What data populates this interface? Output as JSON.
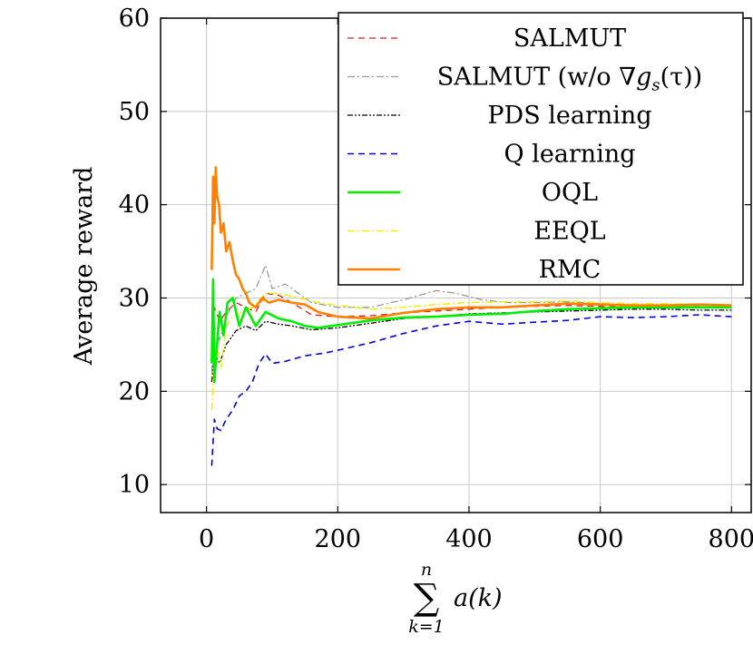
{
  "chart_data": {
    "type": "line",
    "xlabel": "a(k)",
    "xlabel_sum": {
      "symbol": "∑",
      "upper": "n",
      "lower": "k=1"
    },
    "ylabel": "Average reward",
    "xlim": [
      -70,
      830
    ],
    "ylim": [
      7,
      60
    ],
    "xticks": [
      0,
      200,
      400,
      600,
      800
    ],
    "yticks": [
      10,
      20,
      30,
      40,
      50,
      60
    ],
    "grid": true,
    "legend_position": "top-right",
    "series": [
      {
        "name": "SALMUT",
        "color": "#e41a1c",
        "dash": "dashed",
        "width": 1.3,
        "x": [
          8,
          12,
          20,
          30,
          45,
          60,
          75,
          90,
          110,
          130,
          160,
          200,
          250,
          300,
          350,
          400,
          450,
          500,
          550,
          600,
          650,
          700,
          750,
          800
        ],
        "y": [
          24,
          29,
          27.5,
          28.5,
          29.5,
          29,
          28.5,
          30.5,
          30.3,
          29.5,
          28.2,
          28,
          28.1,
          28.4,
          28.6,
          28.8,
          29,
          29.1,
          29.2,
          29.1,
          29,
          29.1,
          29,
          29.1
        ]
      },
      {
        "name": "SALMUT (w/o ∇g_s(τ))",
        "legend_parts": [
          "SALMUT (w/o ∇",
          "g",
          "s",
          "(τ))"
        ],
        "color": "#999999",
        "dash": "dashdot",
        "width": 1.3,
        "x": [
          8,
          12,
          20,
          30,
          45,
          60,
          75,
          90,
          100,
          120,
          140,
          160,
          200,
          250,
          300,
          350,
          380,
          420,
          460,
          500,
          550,
          600,
          650,
          700,
          750,
          800
        ],
        "y": [
          22,
          27,
          25.5,
          28,
          30,
          30.5,
          31,
          33.5,
          31,
          31.5,
          30.5,
          29.5,
          29,
          29,
          29.8,
          30.8,
          30.5,
          29.8,
          29.5,
          29.5,
          29.6,
          29.4,
          29.2,
          29.2,
          29.1,
          29
        ]
      },
      {
        "name": "PDS learning",
        "color": "#000000",
        "dash": "dashdotdot",
        "width": 1.3,
        "x": [
          8,
          12,
          20,
          30,
          45,
          60,
          75,
          90,
          110,
          130,
          160,
          200,
          250,
          300,
          350,
          400,
          450,
          500,
          550,
          600,
          650,
          700,
          750,
          800
        ],
        "y": [
          21,
          24,
          23,
          25,
          26.5,
          27,
          26.5,
          27.5,
          27.2,
          27,
          26.6,
          26.8,
          27.3,
          27.8,
          28,
          28.3,
          28.4,
          28.5,
          28.6,
          28.7,
          28.8,
          28.8,
          28.7,
          28.7
        ]
      },
      {
        "name": "Q learning",
        "color": "#0000dd",
        "dash": "dashed",
        "width": 1.6,
        "x": [
          8,
          12,
          16,
          22,
          30,
          40,
          50,
          60,
          70,
          80,
          90,
          100,
          120,
          150,
          180,
          200,
          250,
          300,
          350,
          400,
          450,
          500,
          550,
          600,
          650,
          700,
          750,
          800
        ],
        "y": [
          12,
          17,
          16,
          15.8,
          17,
          18,
          19.5,
          20,
          21,
          23,
          24,
          23,
          23.2,
          23.8,
          24.1,
          24.4,
          25.2,
          26.2,
          27,
          27.5,
          27.2,
          27.4,
          27.6,
          28,
          27.9,
          28,
          28.2,
          28
        ]
      },
      {
        "name": "OQL",
        "color": "#00ee00",
        "dash": "solid",
        "width": 2.6,
        "x": [
          8,
          10,
          12,
          16,
          20,
          26,
          32,
          40,
          50,
          60,
          75,
          90,
          110,
          130,
          150,
          170,
          200,
          250,
          300,
          350,
          400,
          450,
          500,
          550,
          600,
          650,
          700,
          750,
          800
        ],
        "y": [
          23,
          32,
          21,
          25,
          28.5,
          26,
          29.5,
          30,
          27,
          29,
          27,
          28.5,
          27.8,
          27.5,
          27,
          26.8,
          27.1,
          27.6,
          27.9,
          28,
          28.2,
          28.3,
          28.6,
          28.8,
          28.9,
          29,
          29,
          29,
          29
        ]
      },
      {
        "name": "EEQL",
        "color": "#f0f000",
        "dash": "dashdot",
        "width": 1.5,
        "x": [
          8,
          12,
          16,
          22,
          30,
          40,
          55,
          70,
          90,
          110,
          140,
          170,
          200,
          250,
          300,
          350,
          400,
          450,
          500,
          550,
          600,
          650,
          700,
          750,
          800
        ],
        "y": [
          18,
          24,
          25,
          22.5,
          27,
          28,
          28.5,
          29,
          30.5,
          30.5,
          30,
          29.5,
          29.2,
          28.8,
          29,
          29.3,
          29.5,
          29.6,
          29.6,
          29.7,
          29.5,
          29.4,
          29.4,
          29.3,
          29.3
        ]
      },
      {
        "name": "RMC",
        "color": "#ff8000",
        "dash": "solid",
        "width": 2.6,
        "x": [
          8,
          10,
          12,
          14,
          16,
          19,
          22,
          26,
          30,
          35,
          40,
          45,
          50,
          55,
          60,
          65,
          75,
          85,
          95,
          110,
          130,
          150,
          170,
          200,
          250,
          300,
          350,
          400,
          450,
          500,
          550,
          600,
          650,
          700,
          750,
          800
        ],
        "y": [
          33,
          43,
          38,
          44,
          41,
          40,
          37,
          38,
          35,
          36,
          34,
          32.5,
          32,
          31,
          30.5,
          29.5,
          29,
          30,
          29.5,
          29.8,
          29.5,
          29.3,
          28.5,
          28,
          27.8,
          28.4,
          28.8,
          29,
          29,
          29.2,
          29.4,
          29.3,
          29.2,
          29.2,
          29.3,
          29.2
        ]
      }
    ]
  }
}
